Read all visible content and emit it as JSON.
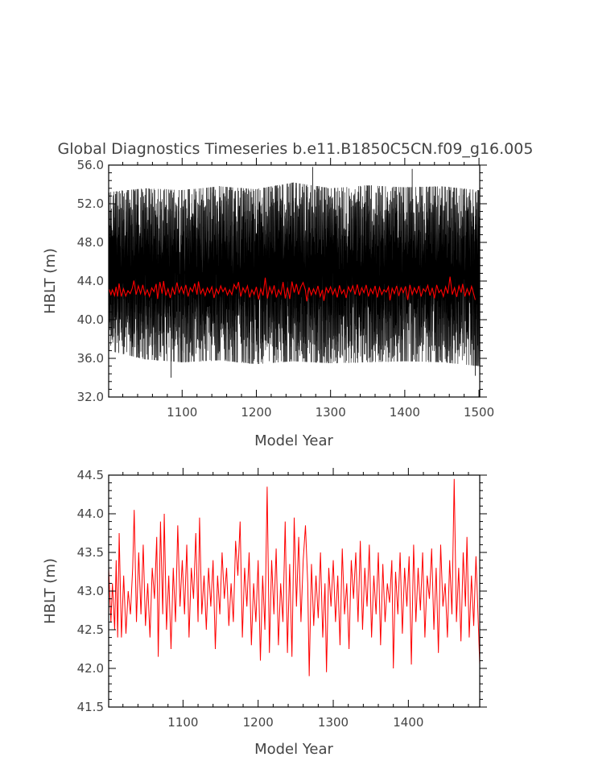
{
  "title": "Global Diagnostics Timeseries b.e11.B1850C5CN.f09_g16.005",
  "chart_data": [
    {
      "type": "line",
      "xlabel": "Model Year",
      "ylabel": "HBLT (m)",
      "xlim": [
        1001,
        1501
      ],
      "ylim": [
        32.0,
        56.0
      ],
      "x_ticks": [
        1100,
        1200,
        1300,
        1400,
        1500
      ],
      "x_tick_labels": [
        "1100",
        "1200",
        "1300",
        "1400",
        "1500"
      ],
      "y_ticks": [
        32.0,
        36.0,
        40.0,
        44.0,
        48.0,
        52.0,
        56.0
      ],
      "y_tick_labels": [
        "32.0",
        "36.0",
        "40.0",
        "44.0",
        "48.0",
        "52.0",
        "56.0"
      ],
      "grid": false,
      "series": [
        {
          "kind": "monthly",
          "color": "#000000",
          "years": [
            1001,
            1050,
            1100,
            1150,
            1200,
            1250,
            1300,
            1350,
            1400,
            1450,
            1500
          ],
          "monthly_min": [
            36.8,
            35.9,
            35.6,
            35.8,
            35.4,
            35.7,
            35.5,
            35.6,
            35.7,
            35.6,
            35.2
          ],
          "monthly_max": [
            53.2,
            53.6,
            53.4,
            53.8,
            53.5,
            54.2,
            53.6,
            53.9,
            53.7,
            53.8,
            53.4
          ],
          "extremes": [
            {
              "x": 1276,
              "y": 55.8
            },
            {
              "x": 1410,
              "y": 55.6
            },
            {
              "x": 1085,
              "y": 34.0
            },
            {
              "x": 1495,
              "y": 34.2
            }
          ]
        },
        {
          "kind": "annual",
          "color": "#ff0000",
          "values_ref": "annual_series"
        }
      ]
    },
    {
      "type": "line",
      "xlabel": "Model Year",
      "ylabel": "HBLT (m)",
      "xlim": [
        1001,
        1495
      ],
      "ylim": [
        41.5,
        44.5
      ],
      "x_ticks": [
        1100,
        1200,
        1300,
        1400
      ],
      "x_tick_labels": [
        "1100",
        "1200",
        "1300",
        "1400"
      ],
      "y_ticks": [
        41.5,
        42.0,
        42.5,
        43.0,
        43.5,
        44.0,
        44.5
      ],
      "y_tick_labels": [
        "41.5",
        "42.0",
        "42.5",
        "43.0",
        "43.5",
        "44.0",
        "44.5"
      ],
      "grid": false,
      "series": [
        {
          "kind": "annual",
          "color": "#ff0000",
          "values_ref": "annual_series"
        }
      ]
    }
  ],
  "annual_series": {
    "x_start": 1001,
    "x_end": 1495,
    "mean": 43.0,
    "values": [
      [
        1001,
        43.3
      ],
      [
        1004,
        42.6
      ],
      [
        1006,
        43.1
      ],
      [
        1009,
        42.5
      ],
      [
        1011,
        43.4
      ],
      [
        1013,
        42.4
      ],
      [
        1015,
        43.75
      ],
      [
        1018,
        42.4
      ],
      [
        1021,
        43.2
      ],
      [
        1024,
        42.45
      ],
      [
        1027,
        43.0
      ],
      [
        1030,
        42.7
      ],
      [
        1033,
        43.3
      ],
      [
        1035,
        44.05
      ],
      [
        1038,
        42.6
      ],
      [
        1041,
        43.5
      ],
      [
        1044,
        42.7
      ],
      [
        1047,
        43.6
      ],
      [
        1050,
        42.55
      ],
      [
        1053,
        43.1
      ],
      [
        1056,
        42.4
      ],
      [
        1059,
        43.3
      ],
      [
        1062,
        42.9
      ],
      [
        1065,
        43.7
      ],
      [
        1067,
        42.15
      ],
      [
        1070,
        43.9
      ],
      [
        1073,
        42.7
      ],
      [
        1075,
        44.0
      ],
      [
        1078,
        42.5
      ],
      [
        1081,
        43.2
      ],
      [
        1084,
        42.25
      ],
      [
        1087,
        43.3
      ],
      [
        1090,
        42.6
      ],
      [
        1093,
        43.85
      ],
      [
        1096,
        42.8
      ],
      [
        1099,
        43.4
      ],
      [
        1102,
        42.7
      ],
      [
        1105,
        43.6
      ],
      [
        1108,
        42.4
      ],
      [
        1111,
        43.3
      ],
      [
        1114,
        42.9
      ],
      [
        1117,
        43.75
      ],
      [
        1120,
        42.6
      ],
      [
        1122,
        43.95
      ],
      [
        1125,
        42.7
      ],
      [
        1128,
        43.2
      ],
      [
        1131,
        42.5
      ],
      [
        1134,
        43.3
      ],
      [
        1137,
        42.8
      ],
      [
        1140,
        43.4
      ],
      [
        1143,
        42.25
      ],
      [
        1146,
        43.2
      ],
      [
        1149,
        42.7
      ],
      [
        1152,
        43.5
      ],
      [
        1155,
        42.9
      ],
      [
        1158,
        43.3
      ],
      [
        1161,
        42.55
      ],
      [
        1164,
        43.1
      ],
      [
        1167,
        42.6
      ],
      [
        1170,
        43.65
      ],
      [
        1173,
        43.2
      ],
      [
        1176,
        43.9
      ],
      [
        1179,
        42.4
      ],
      [
        1182,
        43.3
      ],
      [
        1185,
        42.8
      ],
      [
        1188,
        43.5
      ],
      [
        1191,
        42.3
      ],
      [
        1194,
        43.1
      ],
      [
        1197,
        42.6
      ],
      [
        1200,
        43.4
      ],
      [
        1203,
        42.1
      ],
      [
        1206,
        43.2
      ],
      [
        1209,
        42.5
      ],
      [
        1212,
        44.35
      ],
      [
        1215,
        42.2
      ],
      [
        1218,
        43.4
      ],
      [
        1221,
        42.7
      ],
      [
        1224,
        43.55
      ],
      [
        1227,
        42.3
      ],
      [
        1230,
        43.1
      ],
      [
        1233,
        42.6
      ],
      [
        1236,
        43.9
      ],
      [
        1239,
        42.2
      ],
      [
        1242,
        43.35
      ],
      [
        1245,
        42.15
      ],
      [
        1248,
        43.95
      ],
      [
        1251,
        42.8
      ],
      [
        1254,
        43.7
      ],
      [
        1257,
        42.6
      ],
      [
        1260,
        43.4
      ],
      [
        1263,
        43.85
      ],
      [
        1266,
        43.1
      ],
      [
        1268,
        41.9
      ],
      [
        1271,
        43.35
      ],
      [
        1274,
        42.55
      ],
      [
        1277,
        43.2
      ],
      [
        1280,
        42.65
      ],
      [
        1283,
        43.5
      ],
      [
        1286,
        42.4
      ],
      [
        1289,
        43.1
      ],
      [
        1291,
        41.95
      ],
      [
        1294,
        43.3
      ],
      [
        1297,
        42.8
      ],
      [
        1300,
        43.4
      ],
      [
        1303,
        42.6
      ],
      [
        1306,
        43.2
      ],
      [
        1309,
        42.3
      ],
      [
        1312,
        43.55
      ],
      [
        1315,
        42.7
      ],
      [
        1318,
        43.1
      ],
      [
        1321,
        42.25
      ],
      [
        1324,
        43.4
      ],
      [
        1327,
        42.9
      ],
      [
        1330,
        43.5
      ],
      [
        1333,
        42.6
      ],
      [
        1336,
        43.65
      ],
      [
        1339,
        42.5
      ],
      [
        1342,
        43.3
      ],
      [
        1345,
        42.8
      ],
      [
        1348,
        43.6
      ],
      [
        1351,
        42.4
      ],
      [
        1354,
        43.2
      ],
      [
        1357,
        42.7
      ],
      [
        1360,
        43.5
      ],
      [
        1363,
        42.3
      ],
      [
        1366,
        43.35
      ],
      [
        1369,
        42.6
      ],
      [
        1372,
        43.1
      ],
      [
        1375,
        42.85
      ],
      [
        1378,
        43.4
      ],
      [
        1380,
        42.0
      ],
      [
        1383,
        43.25
      ],
      [
        1386,
        42.7
      ],
      [
        1389,
        43.5
      ],
      [
        1392,
        42.45
      ],
      [
        1395,
        43.3
      ],
      [
        1398,
        42.8
      ],
      [
        1401,
        43.45
      ],
      [
        1404,
        42.05
      ],
      [
        1407,
        43.6
      ],
      [
        1410,
        42.6
      ],
      [
        1413,
        43.3
      ],
      [
        1416,
        42.75
      ],
      [
        1419,
        43.5
      ],
      [
        1422,
        42.4
      ],
      [
        1425,
        43.2
      ],
      [
        1428,
        42.9
      ],
      [
        1431,
        43.55
      ],
      [
        1434,
        42.5
      ],
      [
        1437,
        43.3
      ],
      [
        1440,
        42.2
      ],
      [
        1443,
        43.6
      ],
      [
        1446,
        42.8
      ],
      [
        1449,
        43.1
      ],
      [
        1452,
        42.4
      ],
      [
        1455,
        43.4
      ],
      [
        1458,
        42.7
      ],
      [
        1461,
        44.45
      ],
      [
        1464,
        42.6
      ],
      [
        1467,
        43.3
      ],
      [
        1470,
        42.35
      ],
      [
        1473,
        43.5
      ],
      [
        1476,
        42.8
      ],
      [
        1478,
        43.7
      ],
      [
        1481,
        42.4
      ],
      [
        1484,
        43.2
      ],
      [
        1487,
        42.55
      ],
      [
        1490,
        43.45
      ],
      [
        1492,
        42.9
      ],
      [
        1495,
        42.05
      ]
    ]
  }
}
